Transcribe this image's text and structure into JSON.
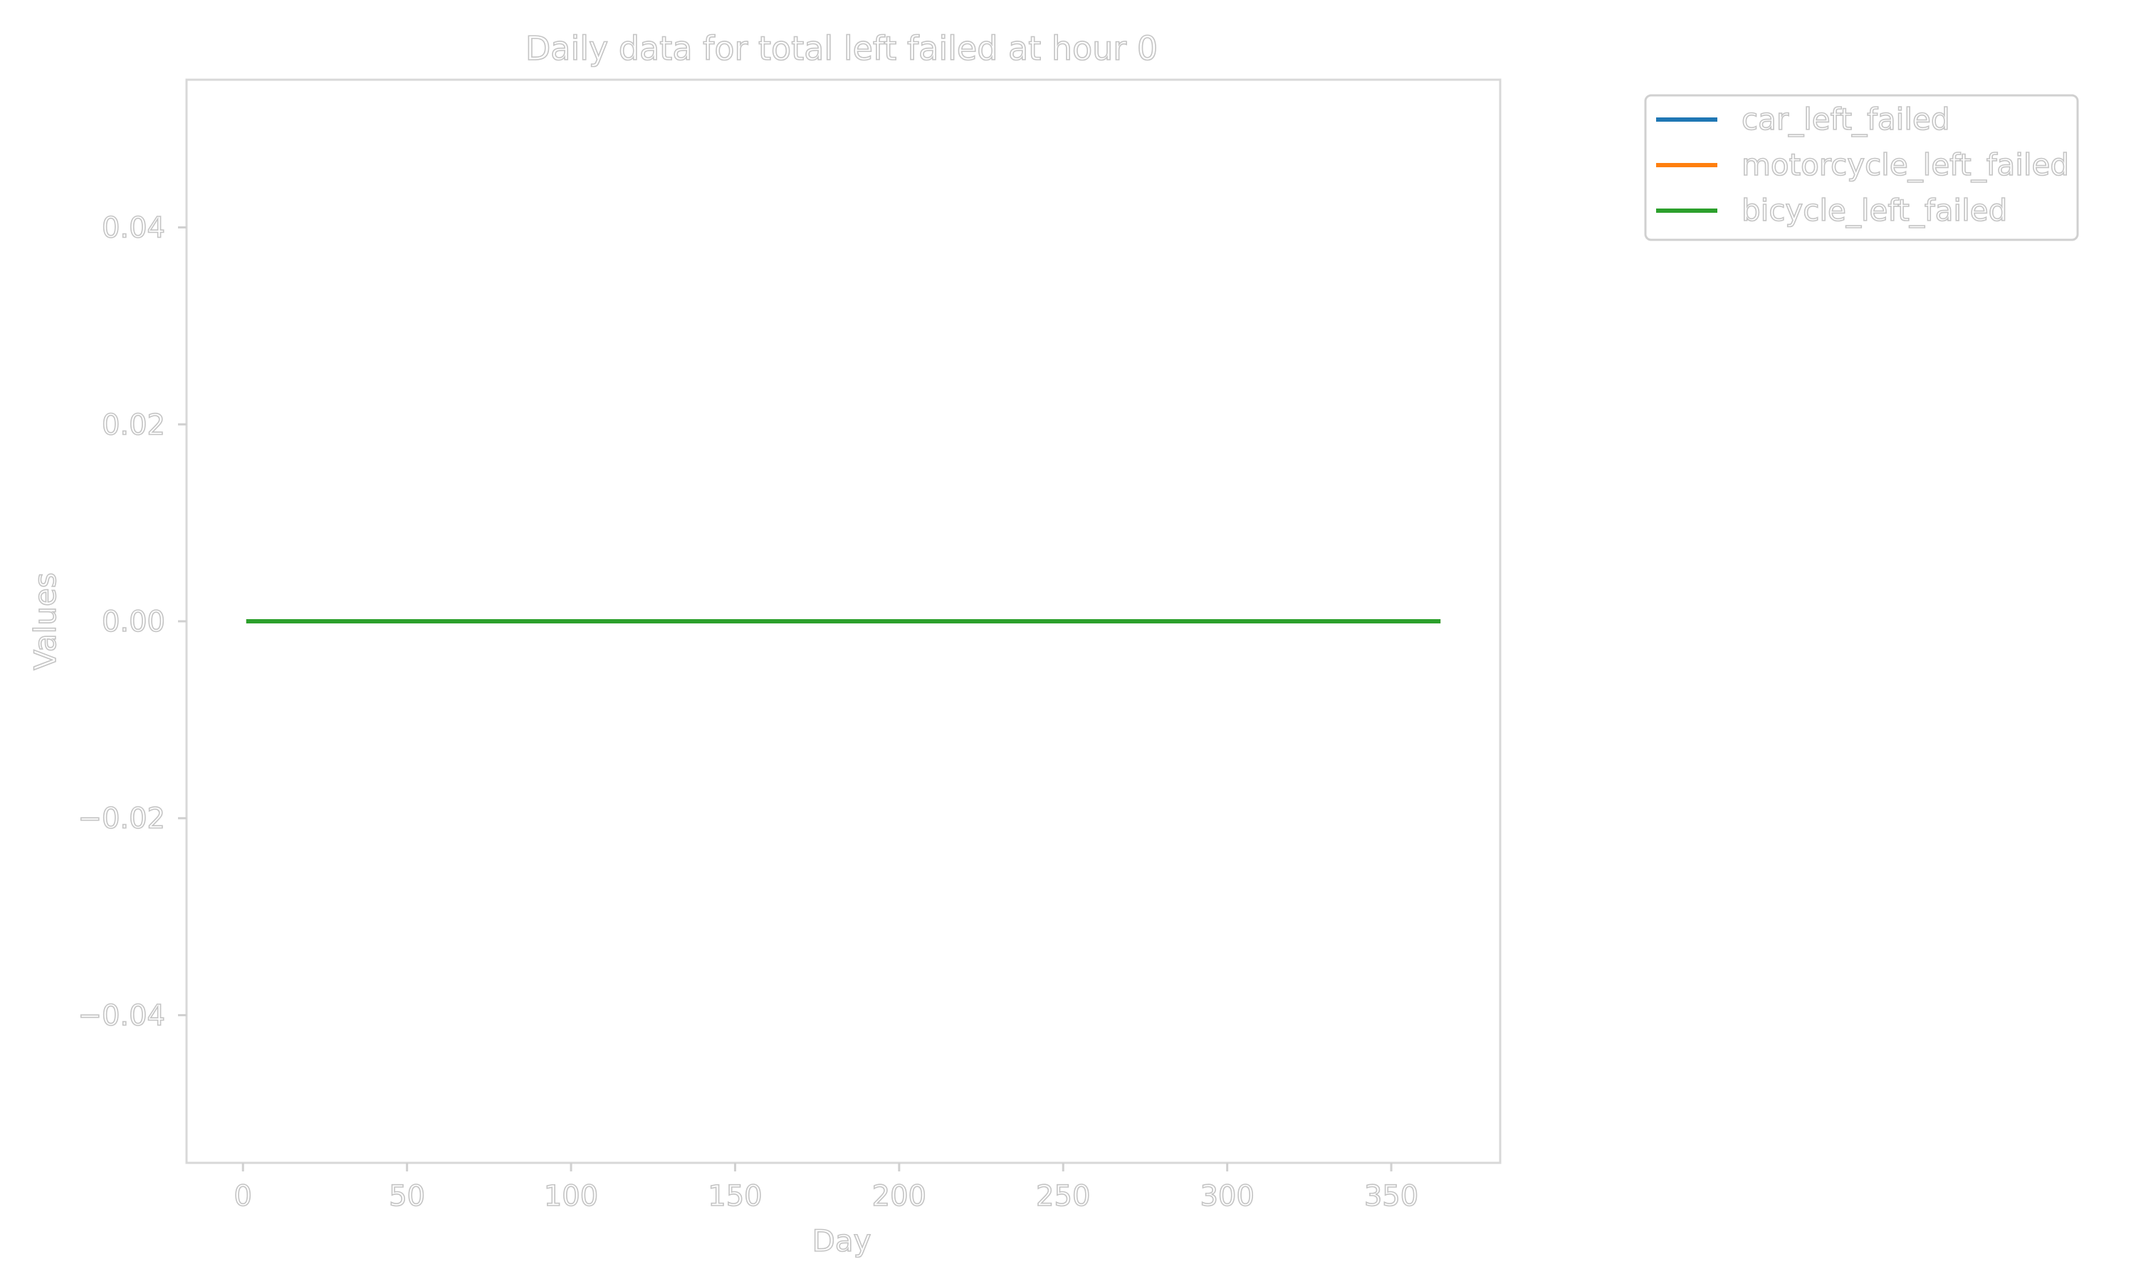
{
  "chart_data": {
    "type": "line",
    "title": "Daily data for total left failed at hour 0",
    "xlabel": "Day",
    "ylabel": "Values",
    "xlim": [
      -17.2,
      383.2
    ],
    "ylim": [
      -0.055,
      0.055
    ],
    "x_ticks": [
      0,
      50,
      100,
      150,
      200,
      250,
      300,
      350
    ],
    "x_tick_labels": [
      "0",
      "50",
      "100",
      "150",
      "200",
      "250",
      "300",
      "350"
    ],
    "y_ticks": [
      0.04,
      0.02,
      0.0,
      -0.02,
      -0.04
    ],
    "y_tick_labels": [
      "0.04",
      "0.02",
      "0.00",
      "−0.02",
      "−0.04"
    ],
    "x_range": [
      1,
      365
    ],
    "grid": false,
    "legend_placement": "outside upper right",
    "series": [
      {
        "name": "car_left_failed",
        "color": "#1f77b4",
        "values": [
          0,
          0
        ]
      },
      {
        "name": "motorcycle_left_failed",
        "color": "#ff7f0e",
        "values": [
          0,
          0
        ]
      },
      {
        "name": "bicycle_left_failed",
        "color": "#2ca02c",
        "values": [
          0,
          0
        ]
      }
    ],
    "series_x": [
      1,
      365
    ]
  }
}
